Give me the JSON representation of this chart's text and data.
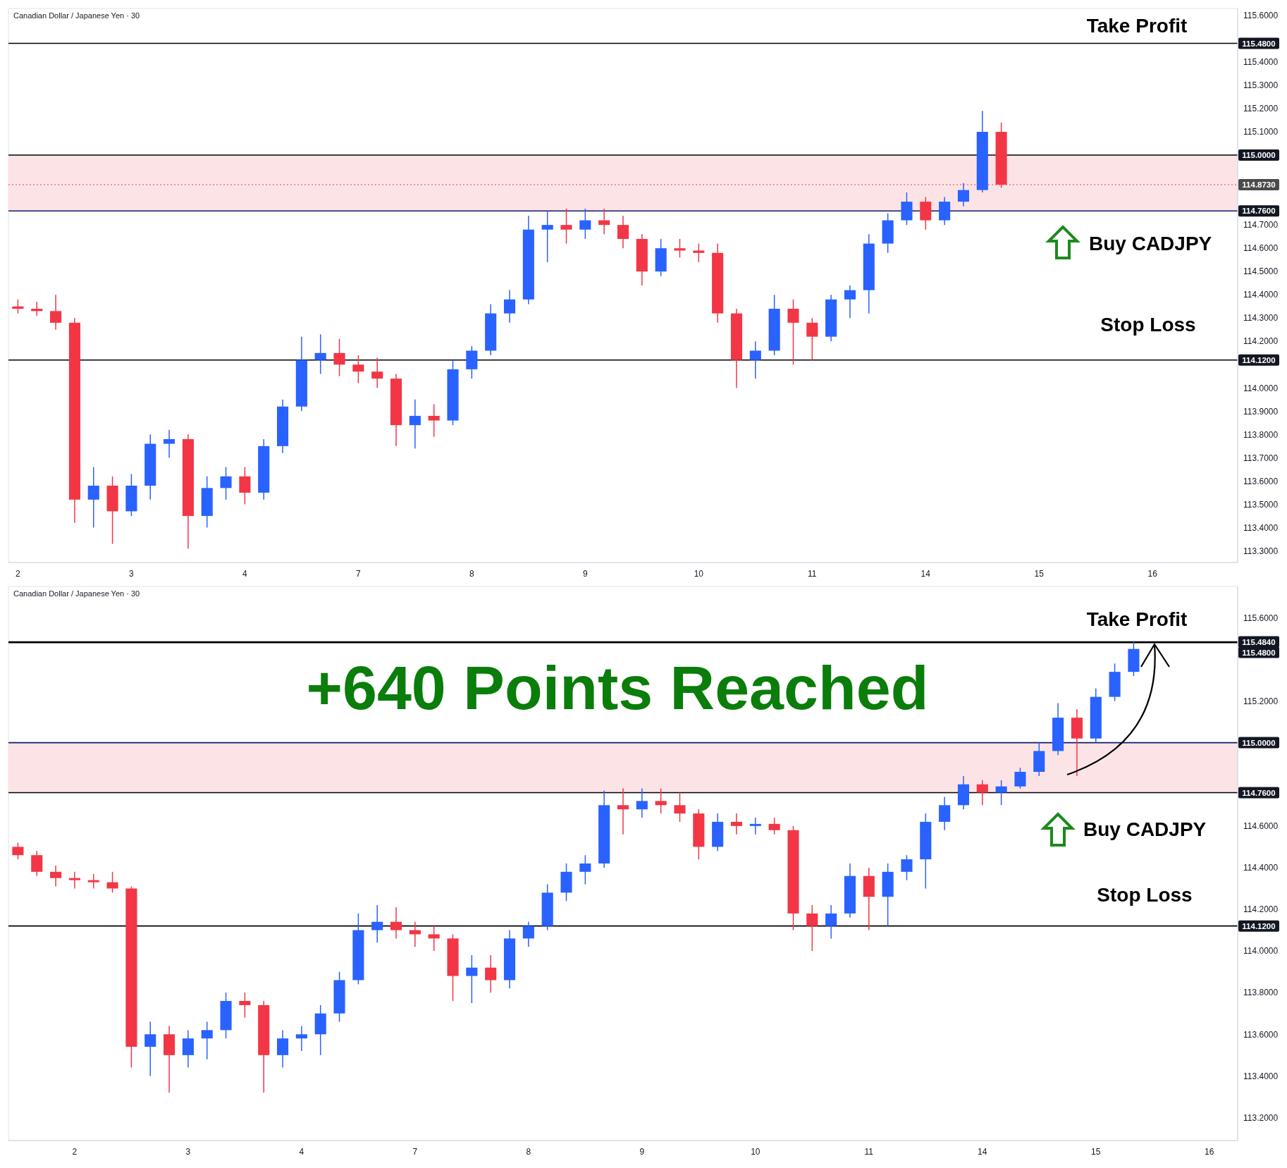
{
  "chart_data": [
    {
      "type": "candlestick",
      "title": "Canadian Dollar / Japanese Yen · 30",
      "categories": [
        "2",
        null,
        null,
        null,
        null,
        null,
        "3",
        null,
        null,
        null,
        null,
        null,
        "4",
        null,
        null,
        null,
        null,
        null,
        "7",
        null,
        null,
        null,
        null,
        null,
        "8",
        null,
        null,
        null,
        null,
        null,
        "9",
        null,
        null,
        null,
        null,
        null,
        "10",
        null,
        null,
        null,
        null,
        null,
        "11",
        null,
        null,
        null,
        null,
        null,
        "14",
        null,
        null,
        null,
        null,
        null,
        "15",
        null,
        null,
        null,
        null,
        null,
        "16",
        null,
        null,
        null,
        null
      ],
      "ohlc": [
        [
          114.35,
          114.38,
          114.32,
          114.34
        ],
        [
          114.34,
          114.37,
          114.31,
          114.33
        ],
        [
          114.33,
          114.4,
          114.25,
          114.28
        ],
        [
          114.28,
          114.3,
          113.42,
          113.52
        ],
        [
          113.52,
          113.66,
          113.4,
          113.58
        ],
        [
          113.58,
          113.62,
          113.33,
          113.47
        ],
        [
          113.47,
          113.63,
          113.45,
          113.58
        ],
        [
          113.58,
          113.8,
          113.52,
          113.76
        ],
        [
          113.76,
          113.82,
          113.7,
          113.78
        ],
        [
          113.78,
          113.8,
          113.31,
          113.45
        ],
        [
          113.45,
          113.62,
          113.4,
          113.57
        ],
        [
          113.57,
          113.66,
          113.52,
          113.62
        ],
        [
          113.62,
          113.66,
          113.5,
          113.55
        ],
        [
          113.55,
          113.78,
          113.52,
          113.75
        ],
        [
          113.75,
          113.95,
          113.72,
          113.92
        ],
        [
          113.92,
          114.22,
          113.9,
          114.12
        ],
        [
          114.12,
          114.23,
          114.06,
          114.15
        ],
        [
          114.15,
          114.21,
          114.05,
          114.1
        ],
        [
          114.1,
          114.14,
          114.02,
          114.07
        ],
        [
          114.07,
          114.13,
          114.0,
          114.04
        ],
        [
          114.04,
          114.06,
          113.75,
          113.84
        ],
        [
          113.84,
          113.95,
          113.74,
          113.88
        ],
        [
          113.88,
          113.93,
          113.79,
          113.86
        ],
        [
          113.86,
          114.12,
          113.84,
          114.08
        ],
        [
          114.08,
          114.18,
          114.04,
          114.16
        ],
        [
          114.16,
          114.36,
          114.14,
          114.32
        ],
        [
          114.32,
          114.42,
          114.28,
          114.38
        ],
        [
          114.38,
          114.74,
          114.36,
          114.68
        ],
        [
          114.68,
          114.76,
          114.54,
          114.7
        ],
        [
          114.7,
          114.77,
          114.62,
          114.68
        ],
        [
          114.68,
          114.77,
          114.64,
          114.72
        ],
        [
          114.72,
          114.77,
          114.66,
          114.7
        ],
        [
          114.7,
          114.74,
          114.6,
          114.64
        ],
        [
          114.64,
          114.66,
          114.44,
          114.5
        ],
        [
          114.5,
          114.64,
          114.48,
          114.6
        ],
        [
          114.6,
          114.64,
          114.56,
          114.59
        ],
        [
          114.59,
          114.62,
          114.54,
          114.58
        ],
        [
          114.58,
          114.62,
          114.28,
          114.32
        ],
        [
          114.32,
          114.34,
          114.0,
          114.12
        ],
        [
          114.12,
          114.2,
          114.04,
          114.16
        ],
        [
          114.16,
          114.4,
          114.14,
          114.34
        ],
        [
          114.34,
          114.38,
          114.1,
          114.28
        ],
        [
          114.28,
          114.3,
          114.12,
          114.22
        ],
        [
          114.22,
          114.4,
          114.2,
          114.38
        ],
        [
          114.38,
          114.44,
          114.3,
          114.42
        ],
        [
          114.42,
          114.66,
          114.32,
          114.62
        ],
        [
          114.62,
          114.75,
          114.58,
          114.72
        ],
        [
          114.72,
          114.84,
          114.7,
          114.8
        ],
        [
          114.8,
          114.82,
          114.68,
          114.72
        ],
        [
          114.72,
          114.82,
          114.7,
          114.8
        ],
        [
          114.8,
          114.88,
          114.78,
          114.85
        ],
        [
          114.85,
          115.19,
          114.84,
          115.1
        ],
        [
          115.1,
          115.14,
          114.86,
          114.873
        ],
        null,
        null,
        null,
        null,
        null,
        null,
        null,
        null,
        null,
        null,
        null,
        null
      ],
      "colors": [
        "#f23645",
        "#f23645",
        "#f23645",
        "#f23645",
        "#2962ff",
        "#f23645",
        "#2962ff",
        "#2962ff",
        "#2962ff",
        "#f23645",
        "#2962ff",
        "#2962ff",
        "#f23645",
        "#2962ff",
        "#2962ff",
        "#2962ff",
        "#2962ff",
        "#f23645",
        "#f23645",
        "#f23645",
        "#f23645",
        "#2962ff",
        "#f23645",
        "#2962ff",
        "#2962ff",
        "#2962ff",
        "#2962ff",
        "#2962ff",
        "#2962ff",
        "#f23645",
        "#2962ff",
        "#f23645",
        "#f23645",
        "#f23645",
        "#2962ff",
        "#f23645",
        "#f23645",
        "#f23645",
        "#f23645",
        "#2962ff",
        "#2962ff",
        "#f23645",
        "#f23645",
        "#2962ff",
        "#2962ff",
        "#2962ff",
        "#2962ff",
        "#2962ff",
        "#f23645",
        "#2962ff",
        "#2962ff",
        "#2962ff",
        "#f23645",
        null,
        null,
        null,
        null,
        null,
        null,
        null,
        null,
        null,
        null,
        null,
        null
      ],
      "ylim": [
        113.25,
        115.63
      ],
      "yticks": [
        {
          "value": 113.3,
          "label": "113.3000"
        },
        {
          "value": 113.4,
          "label": "113.4000"
        },
        {
          "value": 113.5,
          "label": "113.5000"
        },
        {
          "value": 113.6,
          "label": "113.6000"
        },
        {
          "value": 113.7,
          "label": "113.7000"
        },
        {
          "value": 113.8,
          "label": "113.8000"
        },
        {
          "value": 113.9,
          "label": "113.9000"
        },
        {
          "value": 114.0,
          "label": "114.0000"
        },
        {
          "value": 114.2,
          "label": "114.2000"
        },
        {
          "value": 114.3,
          "label": "114.3000"
        },
        {
          "value": 114.4,
          "label": "114.4000"
        },
        {
          "value": 114.5,
          "label": "114.5000"
        },
        {
          "value": 114.6,
          "label": "114.6000"
        },
        {
          "value": 114.7,
          "label": "114.7000"
        },
        {
          "value": 115.1,
          "label": "115.1000"
        },
        {
          "value": 115.2,
          "label": "115.2000"
        },
        {
          "value": 115.3,
          "label": "115.3000"
        },
        {
          "value": 115.4,
          "label": "115.4000"
        },
        {
          "value": 115.6,
          "label": "115.6000"
        }
      ],
      "bands": [
        {
          "axis": "y",
          "from": 114.76,
          "to": 115.0,
          "color": "#fce4e6"
        }
      ],
      "ref_lines": [
        {
          "axis": "y",
          "value": 115.48,
          "label": "115.4800",
          "color": "#000000",
          "line_style": "solid"
        },
        {
          "axis": "y",
          "value": 115.0,
          "label": "115.0000",
          "color": "#000000",
          "line_style": "solid"
        },
        {
          "axis": "y",
          "value": 114.873,
          "label": "114.8730",
          "color": "#f23645",
          "line_style": "dotted"
        },
        {
          "axis": "y",
          "value": 114.76,
          "label": "114.7600",
          "color": "#0d1b6e",
          "line_style": "solid"
        },
        {
          "axis": "y",
          "value": 114.12,
          "label": "114.1200",
          "color": "#000000",
          "line_style": "solid"
        }
      ],
      "annotations": [
        "Take Profit",
        "Buy CADJPY",
        "Stop Loss"
      ]
    },
    {
      "type": "candlestick",
      "title": "Canadian Dollar / Japanese Yen · 30",
      "categories": [
        null,
        null,
        null,
        "2",
        null,
        null,
        null,
        null,
        null,
        "3",
        null,
        null,
        null,
        null,
        null,
        "4",
        null,
        null,
        null,
        null,
        null,
        "7",
        null,
        null,
        null,
        null,
        null,
        "8",
        null,
        null,
        null,
        null,
        null,
        "9",
        null,
        null,
        null,
        null,
        null,
        "10",
        null,
        null,
        null,
        null,
        null,
        "11",
        null,
        null,
        null,
        null,
        null,
        "14",
        null,
        null,
        null,
        null,
        null,
        "15",
        null,
        null,
        null,
        null,
        null,
        "16",
        null
      ],
      "ohlc": [
        [
          114.5,
          114.52,
          114.44,
          114.46
        ],
        [
          114.46,
          114.48,
          114.36,
          114.38
        ],
        [
          114.38,
          114.41,
          114.31,
          114.35
        ],
        [
          114.35,
          114.38,
          114.3,
          114.34
        ],
        [
          114.34,
          114.37,
          114.3,
          114.33
        ],
        [
          114.33,
          114.38,
          114.28,
          114.3
        ],
        [
          114.3,
          114.31,
          113.44,
          113.54
        ],
        [
          113.54,
          113.66,
          113.4,
          113.6
        ],
        [
          113.6,
          113.64,
          113.32,
          113.5
        ],
        [
          113.5,
          113.62,
          113.44,
          113.58
        ],
        [
          113.58,
          113.66,
          113.48,
          113.62
        ],
        [
          113.62,
          113.8,
          113.58,
          113.76
        ],
        [
          113.76,
          113.8,
          113.68,
          113.74
        ],
        [
          113.74,
          113.76,
          113.32,
          113.5
        ],
        [
          113.5,
          113.62,
          113.44,
          113.58
        ],
        [
          113.58,
          113.64,
          113.52,
          113.6
        ],
        [
          113.6,
          113.74,
          113.5,
          113.7
        ],
        [
          113.7,
          113.9,
          113.66,
          113.86
        ],
        [
          113.86,
          114.18,
          113.84,
          114.1
        ],
        [
          114.1,
          114.22,
          114.04,
          114.14
        ],
        [
          114.14,
          114.21,
          114.06,
          114.1
        ],
        [
          114.1,
          114.14,
          114.02,
          114.08
        ],
        [
          114.08,
          114.12,
          114.0,
          114.06
        ],
        [
          114.06,
          114.08,
          113.76,
          113.88
        ],
        [
          113.88,
          113.98,
          113.75,
          113.92
        ],
        [
          113.92,
          113.98,
          113.8,
          113.86
        ],
        [
          113.86,
          114.1,
          113.82,
          114.06
        ],
        [
          114.06,
          114.14,
          114.02,
          114.12
        ],
        [
          114.12,
          114.32,
          114.1,
          114.28
        ],
        [
          114.28,
          114.42,
          114.24,
          114.38
        ],
        [
          114.38,
          114.46,
          114.32,
          114.42
        ],
        [
          114.42,
          114.77,
          114.4,
          114.7
        ],
        [
          114.7,
          114.78,
          114.56,
          114.68
        ],
        [
          114.68,
          114.78,
          114.64,
          114.72
        ],
        [
          114.72,
          114.78,
          114.66,
          114.7
        ],
        [
          114.7,
          114.76,
          114.62,
          114.66
        ],
        [
          114.66,
          114.68,
          114.44,
          114.5
        ],
        [
          114.5,
          114.66,
          114.48,
          114.62
        ],
        [
          114.62,
          114.66,
          114.56,
          114.6
        ],
        [
          114.6,
          114.64,
          114.56,
          114.61
        ],
        [
          114.61,
          114.64,
          114.56,
          114.58
        ],
        [
          114.58,
          114.6,
          114.1,
          114.18
        ],
        [
          114.18,
          114.22,
          114.0,
          114.12
        ],
        [
          114.12,
          114.22,
          114.06,
          114.18
        ],
        [
          114.18,
          114.42,
          114.16,
          114.36
        ],
        [
          114.36,
          114.4,
          114.1,
          114.26
        ],
        [
          114.26,
          114.42,
          114.12,
          114.38
        ],
        [
          114.38,
          114.46,
          114.34,
          114.44
        ],
        [
          114.44,
          114.66,
          114.3,
          114.62
        ],
        [
          114.62,
          114.74,
          114.58,
          114.7
        ],
        [
          114.7,
          114.84,
          114.68,
          114.8
        ],
        [
          114.8,
          114.82,
          114.7,
          114.76
        ],
        [
          114.76,
          114.82,
          114.7,
          114.79
        ],
        [
          114.79,
          114.88,
          114.78,
          114.86
        ],
        [
          114.86,
          115.0,
          114.84,
          114.96
        ],
        [
          114.96,
          115.19,
          114.94,
          115.12
        ],
        [
          115.12,
          115.16,
          114.84,
          115.02
        ],
        [
          115.02,
          115.26,
          115.0,
          115.22
        ],
        [
          115.22,
          115.38,
          115.2,
          115.34
        ],
        [
          115.34,
          115.484,
          115.32,
          115.45
        ],
        null,
        null,
        null,
        null,
        null
      ],
      "colors": [
        "#f23645",
        "#f23645",
        "#f23645",
        "#f23645",
        "#f23645",
        "#f23645",
        "#f23645",
        "#2962ff",
        "#f23645",
        "#2962ff",
        "#2962ff",
        "#2962ff",
        "#f23645",
        "#f23645",
        "#2962ff",
        "#2962ff",
        "#2962ff",
        "#2962ff",
        "#2962ff",
        "#2962ff",
        "#f23645",
        "#f23645",
        "#f23645",
        "#f23645",
        "#2962ff",
        "#f23645",
        "#2962ff",
        "#2962ff",
        "#2962ff",
        "#2962ff",
        "#2962ff",
        "#2962ff",
        "#f23645",
        "#2962ff",
        "#f23645",
        "#f23645",
        "#f23645",
        "#2962ff",
        "#f23645",
        "#2962ff",
        "#f23645",
        "#f23645",
        "#f23645",
        "#2962ff",
        "#2962ff",
        "#f23645",
        "#2962ff",
        "#2962ff",
        "#2962ff",
        "#2962ff",
        "#2962ff",
        "#f23645",
        "#2962ff",
        "#2962ff",
        "#2962ff",
        "#2962ff",
        "#f23645",
        "#2962ff",
        "#2962ff",
        "#2962ff",
        null,
        null,
        null,
        null,
        null
      ],
      "ylim": [
        113.09,
        115.75
      ],
      "yticks": [
        {
          "value": 113.2,
          "label": "113.2000"
        },
        {
          "value": 113.4,
          "label": "113.4000"
        },
        {
          "value": 113.6,
          "label": "113.6000"
        },
        {
          "value": 113.8,
          "label": "113.8000"
        },
        {
          "value": 114.0,
          "label": "114.0000"
        },
        {
          "value": 114.2,
          "label": "114.2000"
        },
        {
          "value": 114.4,
          "label": "114.4000"
        },
        {
          "value": 114.6,
          "label": "114.6000"
        },
        {
          "value": 115.2,
          "label": "115.2000"
        },
        {
          "value": 115.6,
          "label": "115.6000"
        }
      ],
      "bands": [
        {
          "axis": "y",
          "from": 114.76,
          "to": 115.0,
          "color": "#fce4e6"
        }
      ],
      "ref_lines": [
        {
          "axis": "y",
          "value": 115.484,
          "label": "115.4840",
          "color": "#000000",
          "line_style": "solid"
        },
        {
          "axis": "y",
          "value": 115.48,
          "label": "115.4800",
          "color": "#000000",
          "line_style": "solid"
        },
        {
          "axis": "y",
          "value": 115.0,
          "label": "115.0000",
          "color": "#0d1b6e",
          "line_style": "solid"
        },
        {
          "axis": "y",
          "value": 114.76,
          "label": "114.7600",
          "color": "#000000",
          "line_style": "solid"
        },
        {
          "axis": "y",
          "value": 114.12,
          "label": "114.1200",
          "color": "#000000",
          "line_style": "solid"
        }
      ],
      "annotations": [
        "Take Profit",
        "+640 Points Reached",
        "Buy CADJPY",
        "Stop Loss"
      ]
    }
  ]
}
